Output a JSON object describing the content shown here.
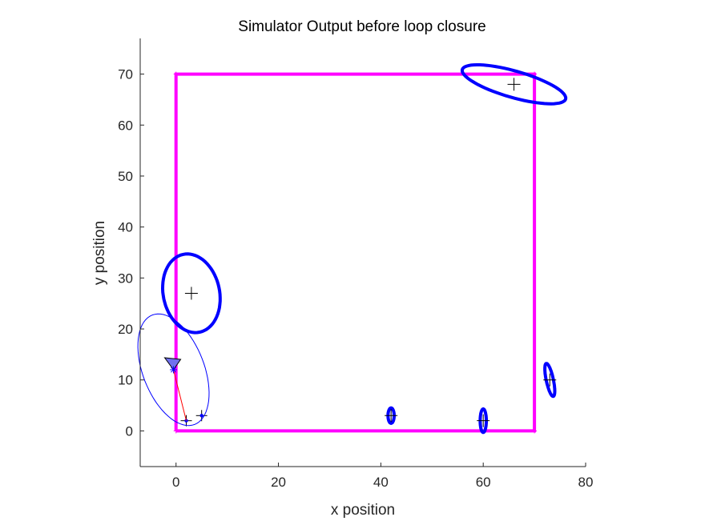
{
  "chart_data": {
    "type": "scatter",
    "title": "Simulator Output before loop closure",
    "xlabel": "x position",
    "ylabel": "y position",
    "xlim": [
      -7,
      80
    ],
    "ylim": [
      -7,
      77
    ],
    "xticks": [
      0,
      20,
      40,
      60,
      80
    ],
    "yticks": [
      0,
      10,
      20,
      30,
      40,
      50,
      60,
      70
    ],
    "grid": false,
    "legend": "none",
    "ground_truth_path": {
      "color": "#ff00ff",
      "points": [
        [
          0,
          0
        ],
        [
          0,
          70
        ],
        [
          70,
          70
        ],
        [
          70,
          0
        ],
        [
          0,
          0
        ]
      ]
    },
    "landmarks": [
      {
        "x": 66,
        "y": 68,
        "sx": 10.5,
        "sy": 2.6,
        "angle": -16,
        "ellipse_color": "#0000ff"
      },
      {
        "x": 3,
        "y": 27,
        "sx": 5.5,
        "sy": 7.8,
        "angle": 12,
        "ellipse_color": "#0000ff"
      },
      {
        "x": 42,
        "y": 3,
        "sx": 0.6,
        "sy": 1.5,
        "angle": 0,
        "ellipse_color": "#0000ff"
      },
      {
        "x": 60,
        "y": 2,
        "sx": 0.6,
        "sy": 2.3,
        "angle": 0,
        "ellipse_color": "#0000ff"
      },
      {
        "x": 73,
        "y": 10,
        "sx": 0.7,
        "sy": 3.3,
        "angle": 12,
        "ellipse_color": "#0000ff"
      },
      {
        "x": 2,
        "y": 2,
        "sx": 0,
        "sy": 0,
        "angle": 0,
        "ellipse_color": "#0000ff"
      },
      {
        "x": 5,
        "y": 3,
        "sx": 0,
        "sy": 0,
        "angle": 0,
        "ellipse_color": "#0000ff"
      }
    ],
    "robot": {
      "x": -0.5,
      "y": 12,
      "heading_deg": 225,
      "cov_sx": 6.0,
      "cov_sy": 11.5,
      "cov_angle": 21,
      "ellipse_color": "#0000ff",
      "marker_color": "#0000ff",
      "observation_color": "#ff0000",
      "observation_to": [
        2,
        2
      ]
    },
    "colors": {
      "path": "#ff00ff",
      "ellipse": "#0000ff",
      "estimate_marker": "#000000",
      "robot_fill": "#7070ee",
      "observation": "#ff0000",
      "axis": "#262626"
    }
  }
}
